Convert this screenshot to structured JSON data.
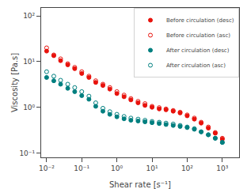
{
  "chart_data": {
    "type": "scatter",
    "xlabel": "Shear rate [s⁻¹]",
    "ylabel": "Viscosity [Pa.s]",
    "log": true,
    "grid": false,
    "legend": "upper right",
    "xlim": [
      0.007,
      3000
    ],
    "ylim": [
      0.08,
      150
    ],
    "xticks": [
      {
        "value": 0.01,
        "label": "10⁻²"
      },
      {
        "value": 0.1,
        "label": "10⁻¹"
      },
      {
        "value": 1,
        "label": "10⁰"
      },
      {
        "value": 10,
        "label": "10¹"
      },
      {
        "value": 100,
        "label": "10²"
      },
      {
        "value": 1000,
        "label": "10³"
      }
    ],
    "yticks": [
      {
        "value": 0.1,
        "label": "10⁻¹"
      },
      {
        "value": 1,
        "label": "10⁰"
      },
      {
        "value": 10,
        "label": "10¹"
      },
      {
        "value": 100,
        "label": "10²"
      }
    ],
    "x": [
      0.01,
      0.016,
      0.025,
      0.04,
      0.063,
      0.1,
      0.16,
      0.25,
      0.4,
      0.63,
      1.0,
      1.6,
      2.5,
      4.0,
      6.3,
      10.0,
      16.0,
      25.0,
      40.0,
      63.0,
      100.0,
      160.0,
      250.0,
      400.0,
      630.0,
      1000.0
    ],
    "series": [
      {
        "name": "Before circulation (desc)",
        "color": "#e8120c",
        "marker": "circle",
        "values": [
          17.0,
          13.5,
          10.5,
          8.5,
          7.0,
          5.5,
          4.5,
          3.5,
          3.0,
          2.5,
          2.0,
          1.7,
          1.45,
          1.25,
          1.1,
          1.0,
          0.92,
          0.88,
          0.82,
          0.75,
          0.65,
          0.55,
          0.45,
          0.35,
          0.27,
          0.2
        ]
      },
      {
        "name": "Before circulation (asc)",
        "color": "#e8120c",
        "marker": "circle-open",
        "values": [
          20.0,
          14.0,
          11.5,
          9.0,
          7.5,
          6.0,
          4.8,
          3.8,
          3.2,
          2.7,
          2.2,
          1.85,
          1.55,
          1.35,
          1.2,
          1.05,
          0.98,
          0.92,
          0.85,
          0.78,
          0.68,
          0.58,
          0.47,
          0.37,
          0.28,
          0.21
        ]
      },
      {
        "name": "After circulation (desc)",
        "color": "#007f7f",
        "marker": "circle",
        "values": [
          4.5,
          3.8,
          3.2,
          2.6,
          2.2,
          1.8,
          1.5,
          1.05,
          0.82,
          0.7,
          0.62,
          0.56,
          0.52,
          0.5,
          0.48,
          0.46,
          0.44,
          0.42,
          0.4,
          0.38,
          0.36,
          0.33,
          0.29,
          0.25,
          0.21,
          0.17
        ]
      },
      {
        "name": "After circulation (asc)",
        "color": "#007f7f",
        "marker": "circle-open",
        "values": [
          6.0,
          4.8,
          3.9,
          3.2,
          2.7,
          2.2,
          1.75,
          1.25,
          0.95,
          0.8,
          0.7,
          0.63,
          0.58,
          0.55,
          0.52,
          0.49,
          0.47,
          0.45,
          0.43,
          0.4,
          0.37,
          0.34,
          0.29,
          0.25,
          0.21,
          0.17
        ]
      }
    ]
  }
}
